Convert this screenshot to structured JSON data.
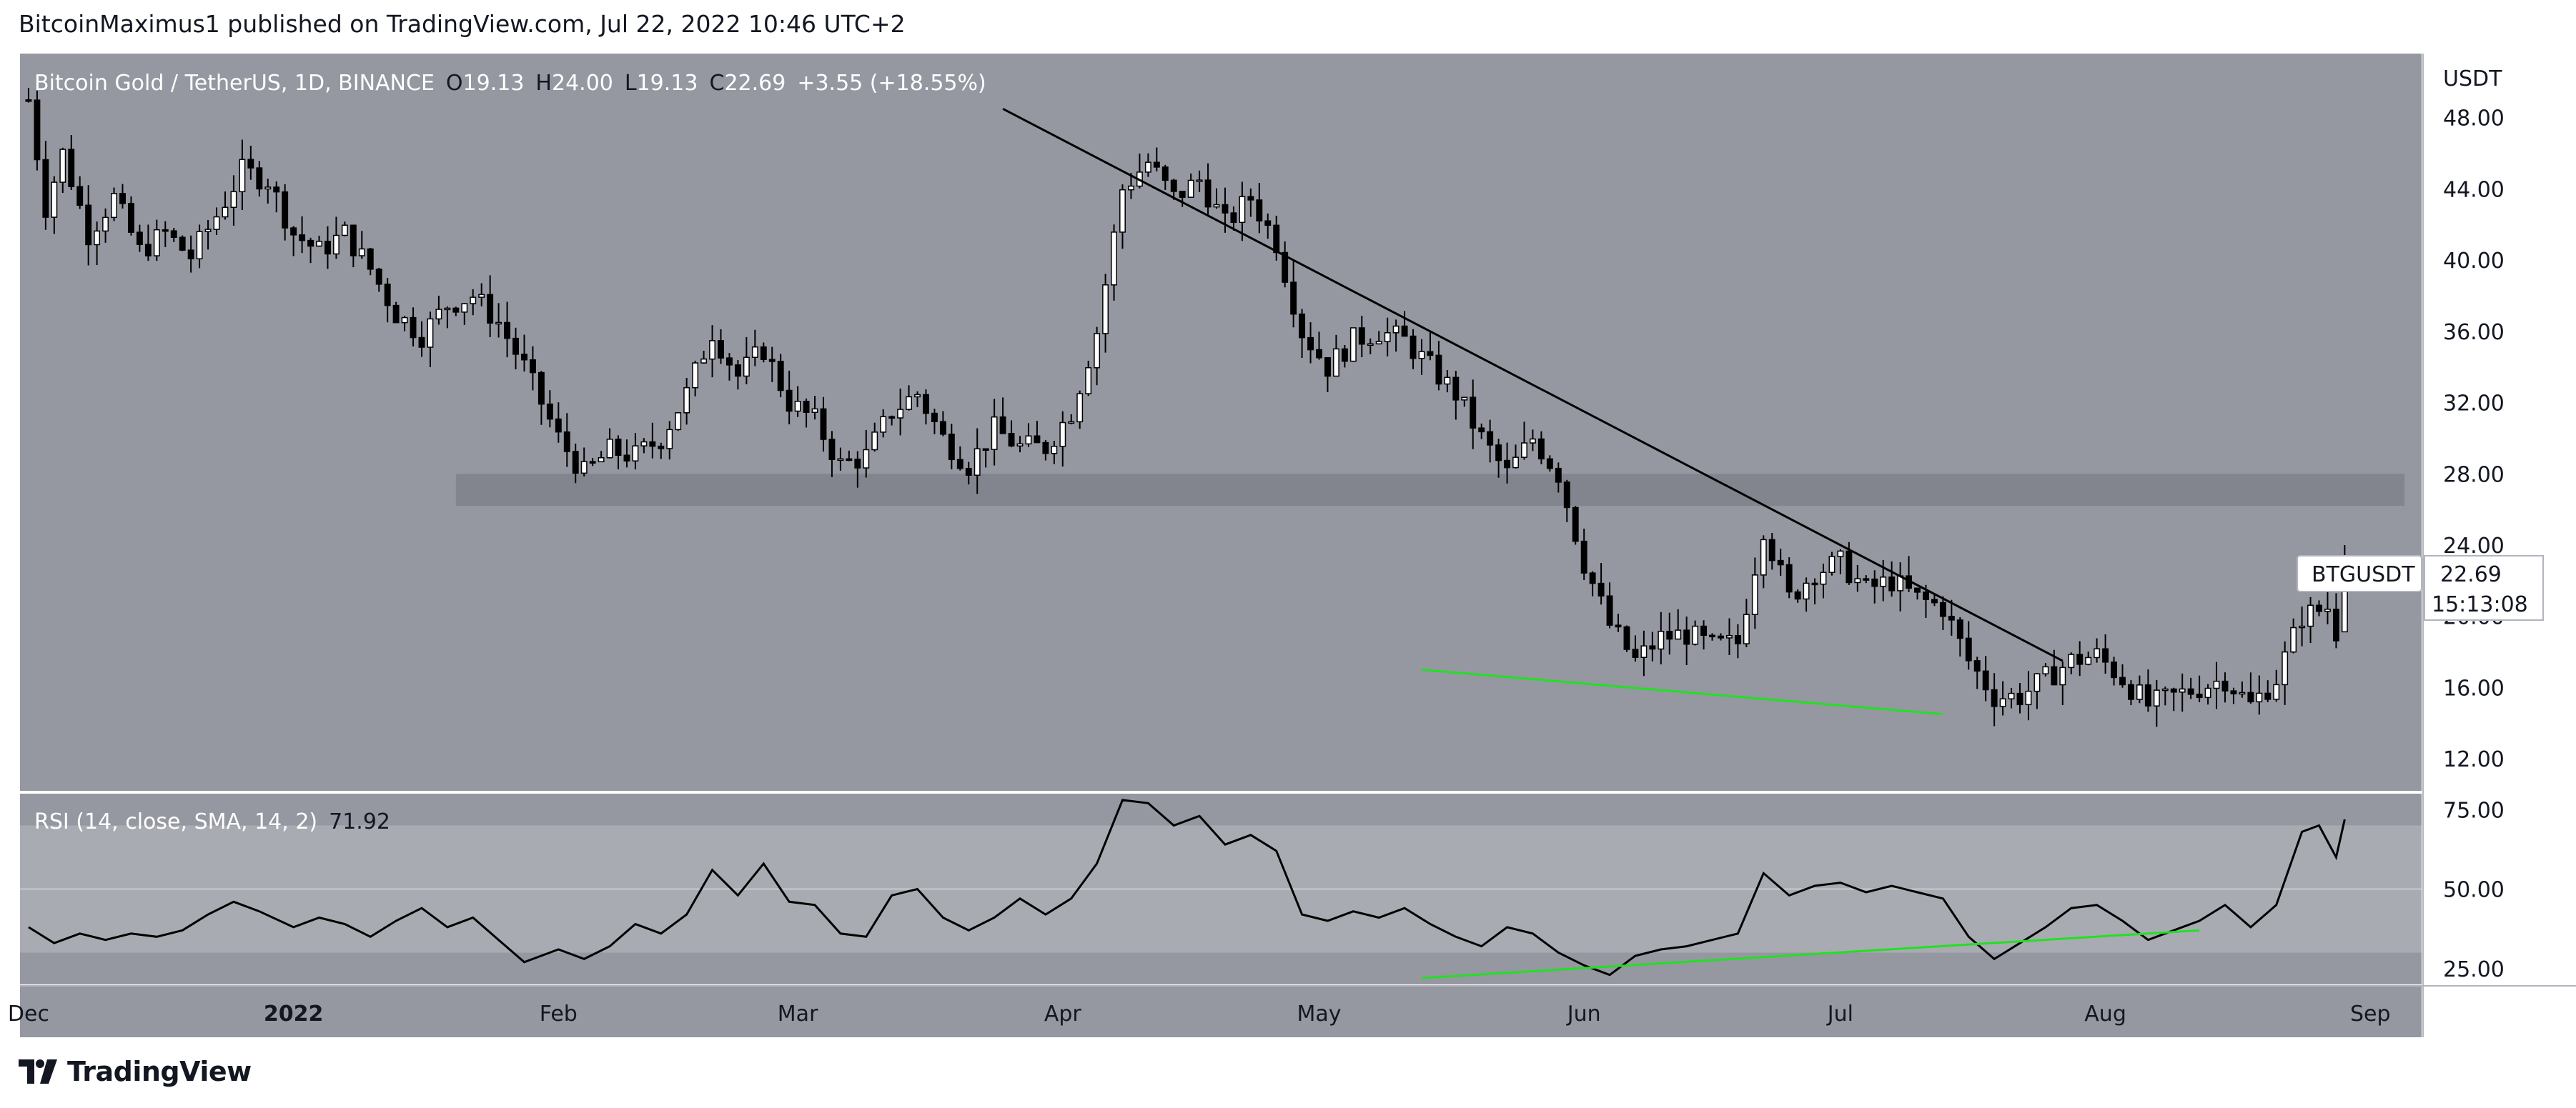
{
  "header": {
    "text": "BitcoinMaximus1 published on TradingView.com, Jul 22, 2022 10:46 UTC+2"
  },
  "footer": {
    "brand": "TradingView",
    "logo": "tradingview-logo-icon"
  },
  "colors": {
    "plot_bg": "#9598a1",
    "rsi_band": "#a9abb2",
    "support_zone": "#80838b",
    "candle_up": "#ffffff",
    "candle_down": "#000000",
    "trendline": "#000000",
    "divergence": "#22e022",
    "axis_bg": "#ffffff",
    "text": "#131722"
  },
  "chart_data": {
    "type": "candlestick",
    "symbol": "Bitcoin Gold / TetherUS, 1D, BINANCE",
    "ohlc_label": {
      "o": "19.13",
      "h": "24.00",
      "l": "19.13",
      "c": "22.69",
      "change": "+3.55 (+18.55%)"
    },
    "price_axis": {
      "unit": "USDT",
      "ylim": [
        10.2,
        51.6
      ],
      "ticks": [
        "48.00",
        "44.00",
        "40.00",
        "36.00",
        "32.00",
        "28.00",
        "24.00",
        "20.00",
        "16.00",
        "12.00"
      ]
    },
    "time_axis": {
      "start": "2021-11-30",
      "end": "2022-09-07",
      "ticks": [
        {
          "label": "Dec",
          "date": "2021-12-01"
        },
        {
          "label": "2022",
          "date": "2022-01-01"
        },
        {
          "label": "Feb",
          "date": "2022-02-01"
        },
        {
          "label": "Mar",
          "date": "2022-03-01"
        },
        {
          "label": "Apr",
          "date": "2022-04-01"
        },
        {
          "label": "May",
          "date": "2022-05-01"
        },
        {
          "label": "Jun",
          "date": "2022-06-01"
        },
        {
          "label": "Jul",
          "date": "2022-07-01"
        },
        {
          "label": "Aug",
          "date": "2022-08-01"
        },
        {
          "label": "Sep",
          "date": "2022-09-01"
        }
      ]
    },
    "price_path": [
      [
        "2021-12-01",
        49
      ],
      [
        "2021-12-03",
        43
      ],
      [
        "2021-12-05",
        46
      ],
      [
        "2021-12-08",
        41.5
      ],
      [
        "2021-12-11",
        43.5
      ],
      [
        "2021-12-14",
        40.5
      ],
      [
        "2021-12-17",
        41.5
      ],
      [
        "2021-12-20",
        40.2
      ],
      [
        "2021-12-23",
        42.5
      ],
      [
        "2021-12-26",
        45
      ],
      [
        "2021-12-29",
        44.5
      ],
      [
        "2022-01-01",
        41.5
      ],
      [
        "2022-01-04",
        40.5
      ],
      [
        "2022-01-07",
        41.5
      ],
      [
        "2022-01-10",
        39.5
      ],
      [
        "2022-01-13",
        37
      ],
      [
        "2022-01-16",
        35.8
      ],
      [
        "2022-01-19",
        37.5
      ],
      [
        "2022-01-22",
        38
      ],
      [
        "2022-01-25",
        36.5
      ],
      [
        "2022-01-28",
        34
      ],
      [
        "2022-02-01",
        30
      ],
      [
        "2022-02-04",
        28
      ],
      [
        "2022-02-07",
        29.3
      ],
      [
        "2022-02-10",
        29
      ],
      [
        "2022-02-13",
        30
      ],
      [
        "2022-02-16",
        32.5
      ],
      [
        "2022-02-19",
        36
      ],
      [
        "2022-02-22",
        33.5
      ],
      [
        "2022-02-25",
        35
      ],
      [
        "2022-02-28",
        32
      ],
      [
        "2022-03-03",
        31
      ],
      [
        "2022-03-06",
        28.5
      ],
      [
        "2022-03-09",
        29
      ],
      [
        "2022-03-12",
        31.5
      ],
      [
        "2022-03-15",
        32.5
      ],
      [
        "2022-03-18",
        30
      ],
      [
        "2022-03-21",
        28.5
      ],
      [
        "2022-03-24",
        30.5
      ],
      [
        "2022-03-27",
        29.5
      ],
      [
        "2022-03-30",
        29.5
      ],
      [
        "2022-04-02",
        31.5
      ],
      [
        "2022-04-05",
        36
      ],
      [
        "2022-04-08",
        44
      ],
      [
        "2022-04-11",
        45.5
      ],
      [
        "2022-04-14",
        43.5
      ],
      [
        "2022-04-17",
        44.5
      ],
      [
        "2022-04-20",
        42
      ],
      [
        "2022-04-23",
        43.5
      ],
      [
        "2022-04-26",
        41
      ],
      [
        "2022-04-29",
        36
      ],
      [
        "2022-05-02",
        34
      ],
      [
        "2022-05-05",
        35.5
      ],
      [
        "2022-05-08",
        36
      ],
      [
        "2022-05-11",
        35.5
      ],
      [
        "2022-05-14",
        34
      ],
      [
        "2022-05-17",
        32.5
      ],
      [
        "2022-05-20",
        30
      ],
      [
        "2022-05-23",
        28
      ],
      [
        "2022-05-26",
        30
      ],
      [
        "2022-05-29",
        28
      ],
      [
        "2022-06-01",
        23
      ],
      [
        "2022-06-04",
        19.5
      ],
      [
        "2022-06-07",
        17.5
      ],
      [
        "2022-06-10",
        18.8
      ],
      [
        "2022-06-13",
        19
      ],
      [
        "2022-06-16",
        18.3
      ],
      [
        "2022-06-19",
        18.5
      ],
      [
        "2022-06-22",
        25
      ],
      [
        "2022-06-25",
        21
      ],
      [
        "2022-06-28",
        22.5
      ],
      [
        "2022-07-01",
        23
      ],
      [
        "2022-07-04",
        21.5
      ],
      [
        "2022-07-07",
        22
      ],
      [
        "2022-07-10",
        21
      ],
      [
        "2022-07-13",
        20.5
      ],
      [
        "2022-07-16",
        17.5
      ],
      [
        "2022-07-19",
        15.5
      ],
      [
        "2022-07-22",
        15.5
      ],
      [
        "2022-07-25",
        16.5
      ],
      [
        "2022-07-28",
        17.5
      ],
      [
        "2022-07-31",
        17.8
      ],
      [
        "2022-08-03",
        16.5
      ],
      [
        "2022-08-06",
        15
      ],
      [
        "2022-08-09",
        15.5
      ],
      [
        "2022-08-12",
        16
      ],
      [
        "2022-08-15",
        16.5
      ],
      [
        "2022-08-18",
        15
      ],
      [
        "2022-08-21",
        16.5
      ],
      [
        "2022-08-24",
        20
      ],
      [
        "2022-08-27",
        20.5
      ],
      [
        "2022-08-28",
        19.13
      ],
      [
        "2022-08-29",
        22.69
      ]
    ],
    "last_candle": {
      "date": "2022-08-29",
      "open": 19.13,
      "high": 24.0,
      "low": 19.13,
      "close": 22.69
    },
    "annotations": [
      {
        "type": "descending_resistance",
        "from": [
          "2022-03-25",
          48.5
        ],
        "to": [
          "2022-07-27",
          17.5
        ]
      },
      {
        "type": "horizontal_support_zone",
        "from_date": "2022-01-20",
        "to_date": "2022-09-05",
        "y_low": 26.2,
        "y_high": 28.0
      },
      {
        "type": "price_divergence_line",
        "from": [
          "2022-05-13",
          17.0
        ],
        "to": [
          "2022-07-13",
          14.5
        ]
      }
    ],
    "price_tag": {
      "symbol": "BTGUSDT",
      "value": "22.69",
      "countdown": "15:13:08"
    },
    "rsi": {
      "label": "RSI (14, close, SMA, 14, 2)",
      "value": "71.92",
      "ylim": [
        20,
        80
      ],
      "ticks": [
        "75.00",
        "50.00",
        "25.00"
      ],
      "band": [
        30,
        70
      ],
      "values": [
        [
          "2021-12-01",
          38
        ],
        [
          "2021-12-04",
          33
        ],
        [
          "2021-12-07",
          36
        ],
        [
          "2021-12-10",
          34
        ],
        [
          "2021-12-13",
          36
        ],
        [
          "2021-12-16",
          35
        ],
        [
          "2021-12-19",
          37
        ],
        [
          "2021-12-22",
          42
        ],
        [
          "2021-12-25",
          46
        ],
        [
          "2021-12-28",
          43
        ],
        [
          "2022-01-01",
          38
        ],
        [
          "2022-01-04",
          41
        ],
        [
          "2022-01-07",
          39
        ],
        [
          "2022-01-10",
          35
        ],
        [
          "2022-01-13",
          40
        ],
        [
          "2022-01-16",
          44
        ],
        [
          "2022-01-19",
          38
        ],
        [
          "2022-01-22",
          41
        ],
        [
          "2022-01-25",
          34
        ],
        [
          "2022-01-28",
          27
        ],
        [
          "2022-02-01",
          31
        ],
        [
          "2022-02-04",
          28
        ],
        [
          "2022-02-07",
          32
        ],
        [
          "2022-02-10",
          39
        ],
        [
          "2022-02-13",
          36
        ],
        [
          "2022-02-16",
          42
        ],
        [
          "2022-02-19",
          56
        ],
        [
          "2022-02-22",
          48
        ],
        [
          "2022-02-25",
          58
        ],
        [
          "2022-02-28",
          46
        ],
        [
          "2022-03-03",
          45
        ],
        [
          "2022-03-06",
          36
        ],
        [
          "2022-03-09",
          35
        ],
        [
          "2022-03-12",
          48
        ],
        [
          "2022-03-15",
          50
        ],
        [
          "2022-03-18",
          41
        ],
        [
          "2022-03-21",
          37
        ],
        [
          "2022-03-24",
          41
        ],
        [
          "2022-03-27",
          47
        ],
        [
          "2022-03-30",
          42
        ],
        [
          "2022-04-02",
          47
        ],
        [
          "2022-04-05",
          58
        ],
        [
          "2022-04-08",
          78
        ],
        [
          "2022-04-11",
          77
        ],
        [
          "2022-04-14",
          70
        ],
        [
          "2022-04-17",
          73
        ],
        [
          "2022-04-20",
          64
        ],
        [
          "2022-04-23",
          67
        ],
        [
          "2022-04-26",
          62
        ],
        [
          "2022-04-29",
          42
        ],
        [
          "2022-05-02",
          40
        ],
        [
          "2022-05-05",
          43
        ],
        [
          "2022-05-08",
          41
        ],
        [
          "2022-05-11",
          44
        ],
        [
          "2022-05-14",
          39
        ],
        [
          "2022-05-17",
          35
        ],
        [
          "2022-05-20",
          32
        ],
        [
          "2022-05-23",
          38
        ],
        [
          "2022-05-26",
          36
        ],
        [
          "2022-05-29",
          30
        ],
        [
          "2022-06-01",
          26
        ],
        [
          "2022-06-04",
          23
        ],
        [
          "2022-06-07",
          29
        ],
        [
          "2022-06-10",
          31
        ],
        [
          "2022-06-13",
          32
        ],
        [
          "2022-06-16",
          34
        ],
        [
          "2022-06-19",
          36
        ],
        [
          "2022-06-22",
          55
        ],
        [
          "2022-06-25",
          48
        ],
        [
          "2022-06-28",
          51
        ],
        [
          "2022-07-01",
          52
        ],
        [
          "2022-07-04",
          49
        ],
        [
          "2022-07-07",
          51
        ],
        [
          "2022-07-10",
          49
        ],
        [
          "2022-07-13",
          47
        ],
        [
          "2022-07-16",
          35
        ],
        [
          "2022-07-19",
          28
        ],
        [
          "2022-07-22",
          33
        ],
        [
          "2022-07-25",
          38
        ],
        [
          "2022-07-28",
          44
        ],
        [
          "2022-07-31",
          45
        ],
        [
          "2022-08-03",
          40
        ],
        [
          "2022-08-06",
          34
        ],
        [
          "2022-08-09",
          37
        ],
        [
          "2022-08-12",
          40
        ],
        [
          "2022-08-15",
          45
        ],
        [
          "2022-08-18",
          38
        ],
        [
          "2022-08-21",
          45
        ],
        [
          "2022-08-24",
          68
        ],
        [
          "2022-08-26",
          70
        ],
        [
          "2022-08-28",
          60
        ],
        [
          "2022-08-29",
          71.92
        ]
      ],
      "divergence": {
        "from": [
          "2022-05-13",
          22
        ],
        "to": [
          "2022-08-12",
          37
        ]
      }
    }
  }
}
